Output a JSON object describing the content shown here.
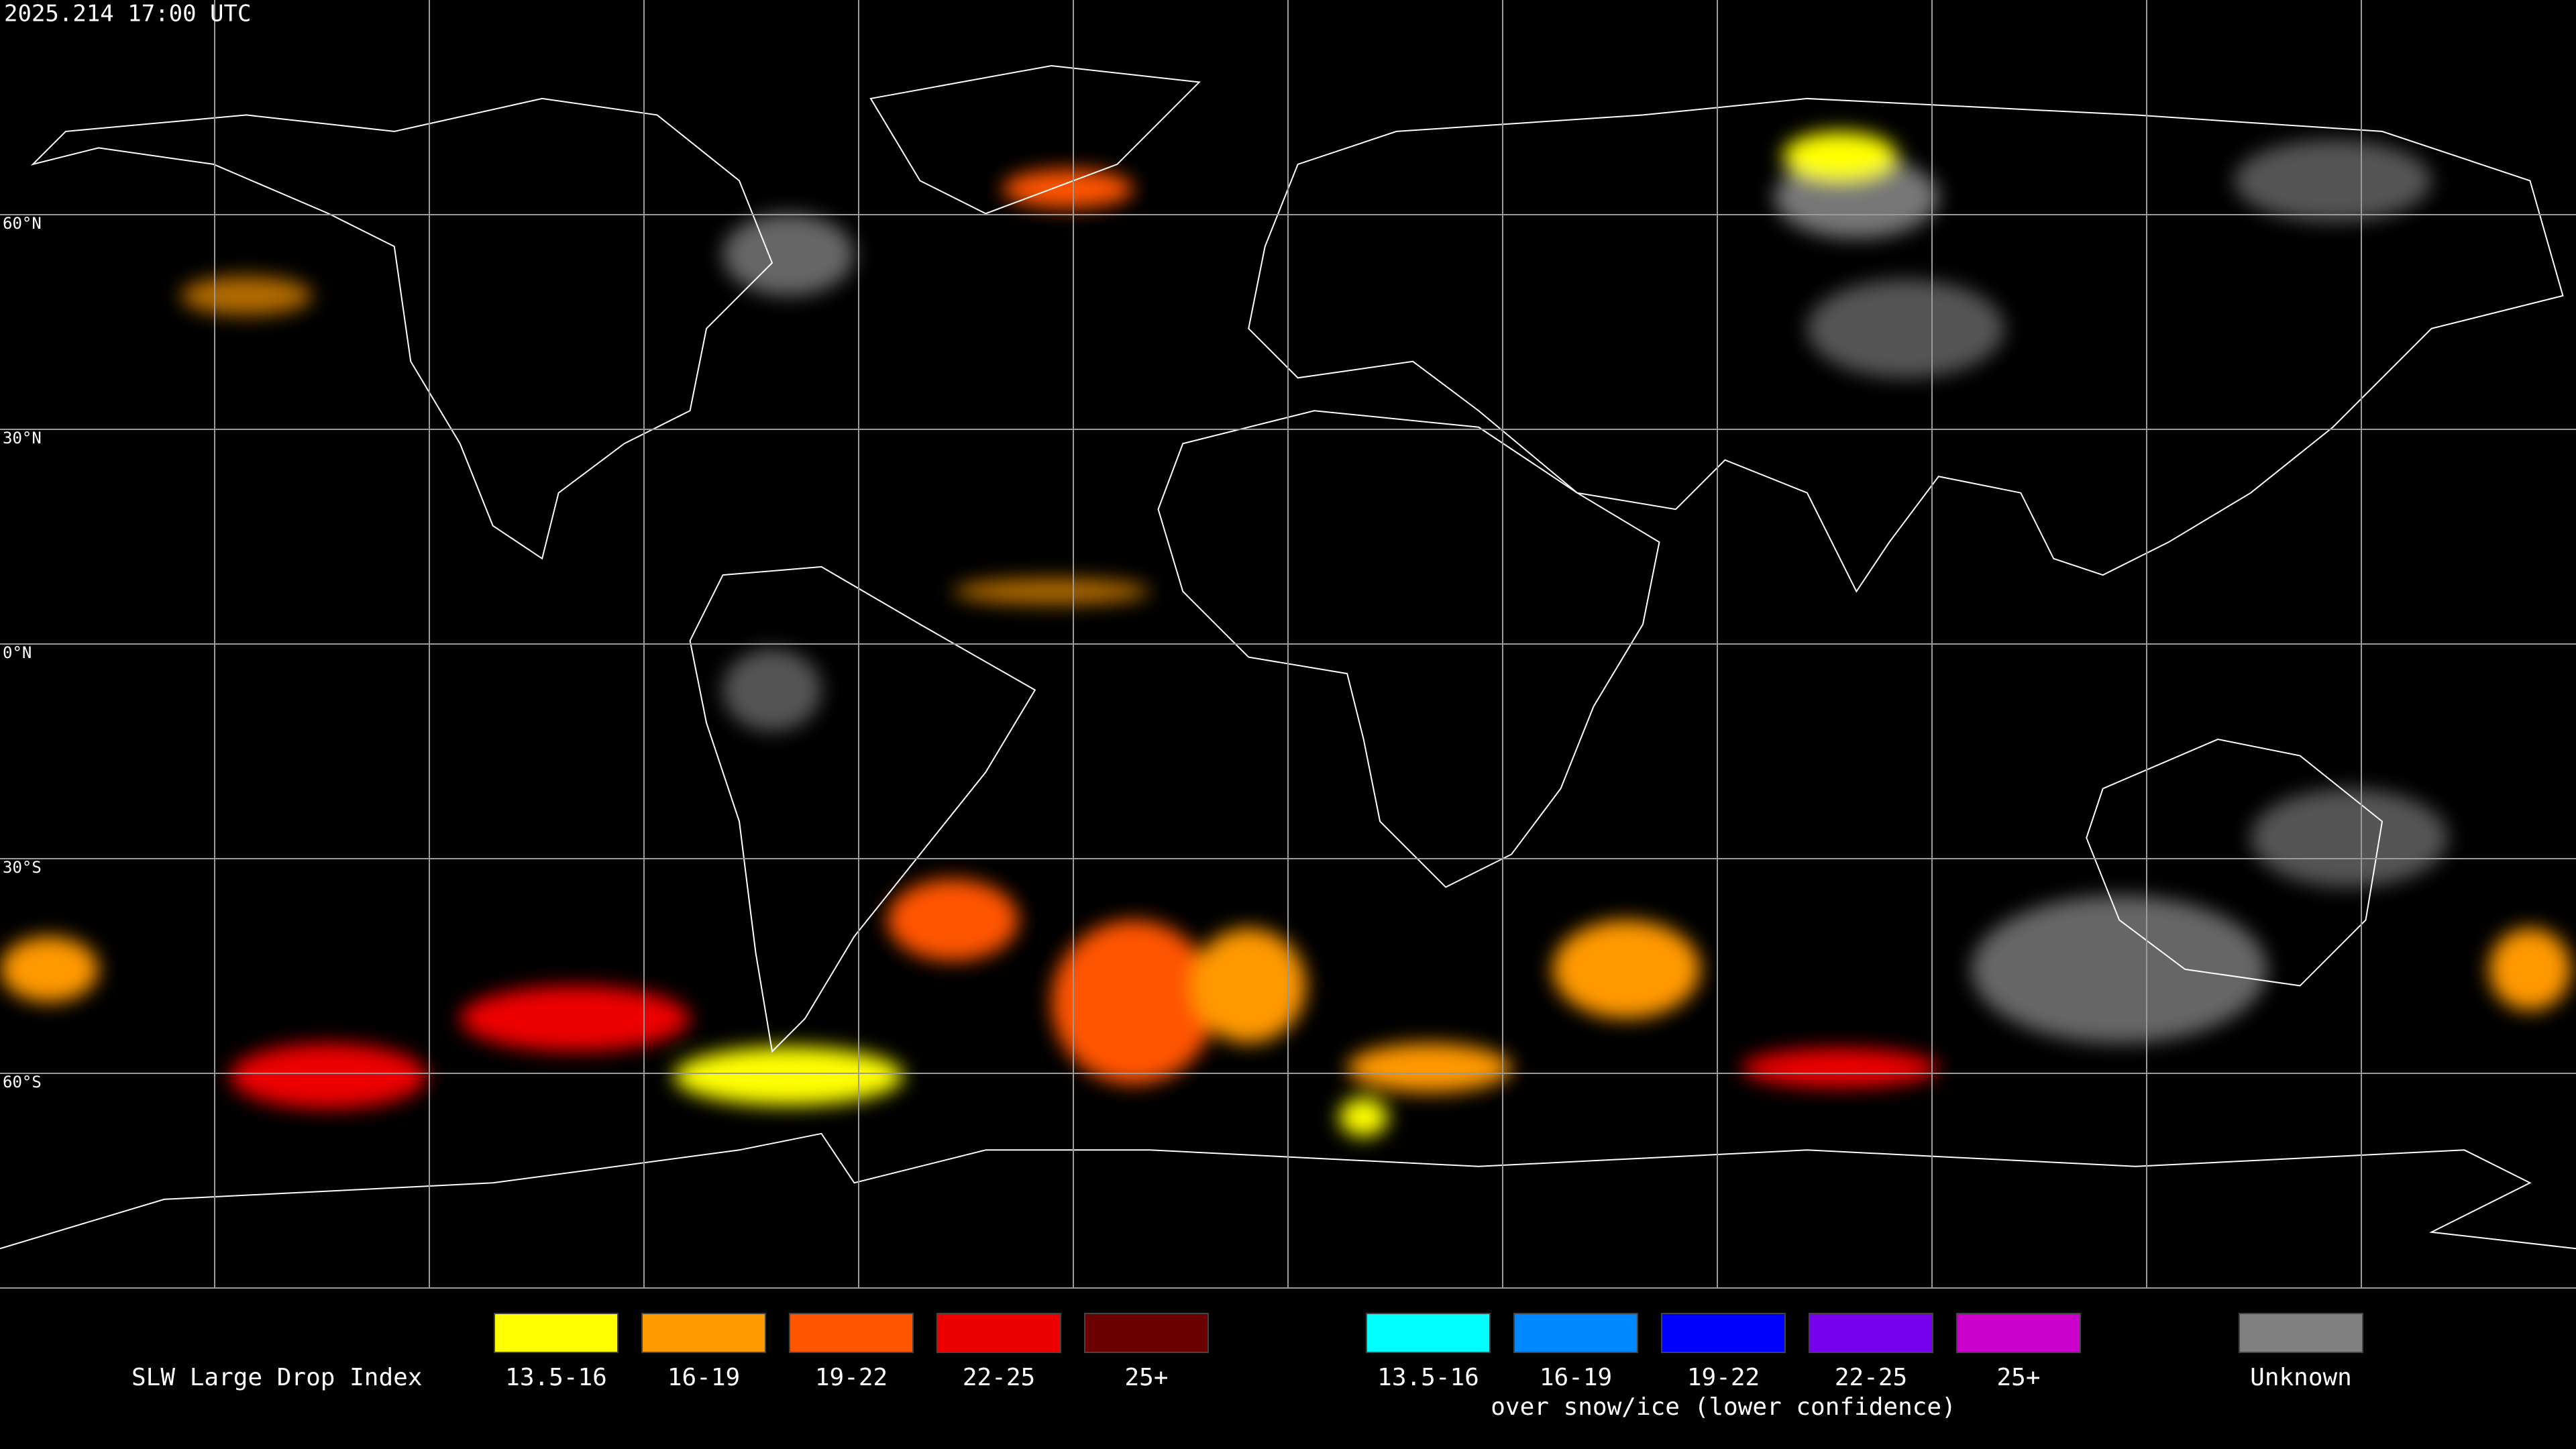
{
  "header": {
    "timestamp": "2025.214 17:00 UTC"
  },
  "map": {
    "latitude_labels": [
      "60°N",
      "30°N",
      "0°N",
      "30°S",
      "60°S"
    ]
  },
  "legend": {
    "title": "SLW Large Drop Index",
    "groups": [
      {
        "items": [
          {
            "label": "13.5-16",
            "color": "#ffff00"
          },
          {
            "label": "16-19",
            "color": "#ff9900"
          },
          {
            "label": "19-22",
            "color": "#ff5500"
          },
          {
            "label": "22-25",
            "color": "#ee0000"
          },
          {
            "label": "25+",
            "color": "#6a0000"
          }
        ]
      },
      {
        "items": [
          {
            "label": "13.5-16",
            "color": "#00ffff"
          },
          {
            "label": "16-19",
            "color": "#0088ff"
          },
          {
            "label": "19-22",
            "color": "#0000ff"
          },
          {
            "label": "22-25",
            "color": "#7700ee"
          },
          {
            "label": "25+",
            "color": "#cc00cc"
          }
        ],
        "caption": "over snow/ice (lower confidence)"
      },
      {
        "items": [
          {
            "label": "Unknown",
            "color": "#808080"
          }
        ]
      }
    ]
  }
}
